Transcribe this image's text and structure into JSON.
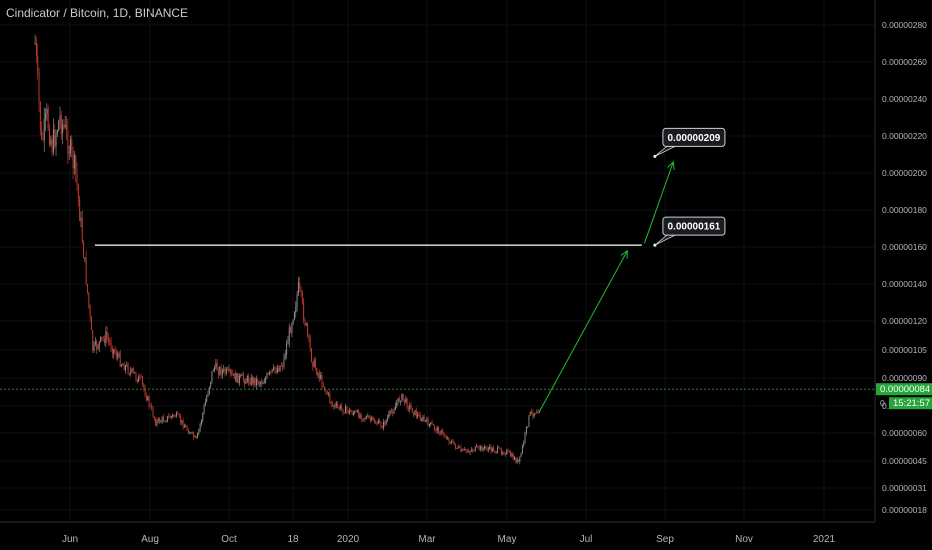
{
  "header": {
    "title": "Cindicator / Bitcoin, 1D, BINANCE"
  },
  "colors": {
    "background": "#000000",
    "up": "#8a8a8a",
    "down": "#c0392b",
    "line": "#ffffff",
    "arrow": "#1fbf2a",
    "price_tag": "#26a63a",
    "axis_text": "#b2b5be"
  },
  "chart_data": {
    "type": "candlestick",
    "title": "Cindicator / Bitcoin, 1D, BINANCE",
    "y_tick_labels": [
      "0.00000280",
      "0.00000260",
      "0.00000240",
      "0.00000220",
      "0.00000200",
      "0.00000180",
      "0.00000160",
      "0.00000140",
      "0.00000120",
      "0.00000105",
      "0.00000090",
      "0.00000075",
      "0.00000060",
      "0.00000045",
      "0.00000031",
      "0.00000018"
    ],
    "x_tick_labels": [
      "Jun",
      "Aug",
      "Oct",
      "18",
      "2020",
      "Mar",
      "May",
      "Jul",
      "Sep",
      "Nov",
      "2021"
    ],
    "price_path": [
      [
        "2019-05-05",
        2.7e-06
      ],
      [
        "2019-05-10",
        2.15e-06
      ],
      [
        "2019-05-14",
        2.3e-06
      ],
      [
        "2019-05-18",
        2.15e-06
      ],
      [
        "2019-05-24",
        2.3e-06
      ],
      [
        "2019-05-29",
        2.2e-06
      ],
      [
        "2019-06-05",
        2e-06
      ],
      [
        "2019-06-12",
        1.5e-06
      ],
      [
        "2019-06-18",
        1.05e-06
      ],
      [
        "2019-06-28",
        1.12e-06
      ],
      [
        "2019-07-10",
        9.8e-07
      ],
      [
        "2019-07-25",
        8.8e-07
      ],
      [
        "2019-08-05",
        6.6e-07
      ],
      [
        "2019-08-20",
        7e-07
      ],
      [
        "2019-09-05",
        5.6e-07
      ],
      [
        "2019-09-18",
        9.6e-07
      ],
      [
        "2019-10-05",
        9e-07
      ],
      [
        "2019-10-25",
        8.8e-07
      ],
      [
        "2019-11-10",
        9.8e-07
      ],
      [
        "2019-11-22",
        1.38e-06
      ],
      [
        "2019-12-02",
        1e-06
      ],
      [
        "2019-12-18",
        7.5e-07
      ],
      [
        "2020-01-08",
        7e-07
      ],
      [
        "2020-01-25",
        6.4e-07
      ],
      [
        "2020-02-08",
        8e-07
      ],
      [
        "2020-02-20",
        7e-07
      ],
      [
        "2020-03-10",
        6e-07
      ],
      [
        "2020-03-25",
        5e-07
      ],
      [
        "2020-04-10",
        5.2e-07
      ],
      [
        "2020-04-28",
        5e-07
      ],
      [
        "2020-05-08",
        4.4e-07
      ],
      [
        "2020-05-16",
        7e-07
      ],
      [
        "2020-05-24",
        7.4e-07
      ]
    ],
    "current_price": "0.00000084",
    "countdown": "15:21:57",
    "horizontal_line_level": 1.61e-06,
    "annotations": [
      {
        "text": "0.00000161",
        "value": 1.61e-06
      },
      {
        "text": "0.00000209",
        "value": 2.09e-06
      }
    ]
  }
}
